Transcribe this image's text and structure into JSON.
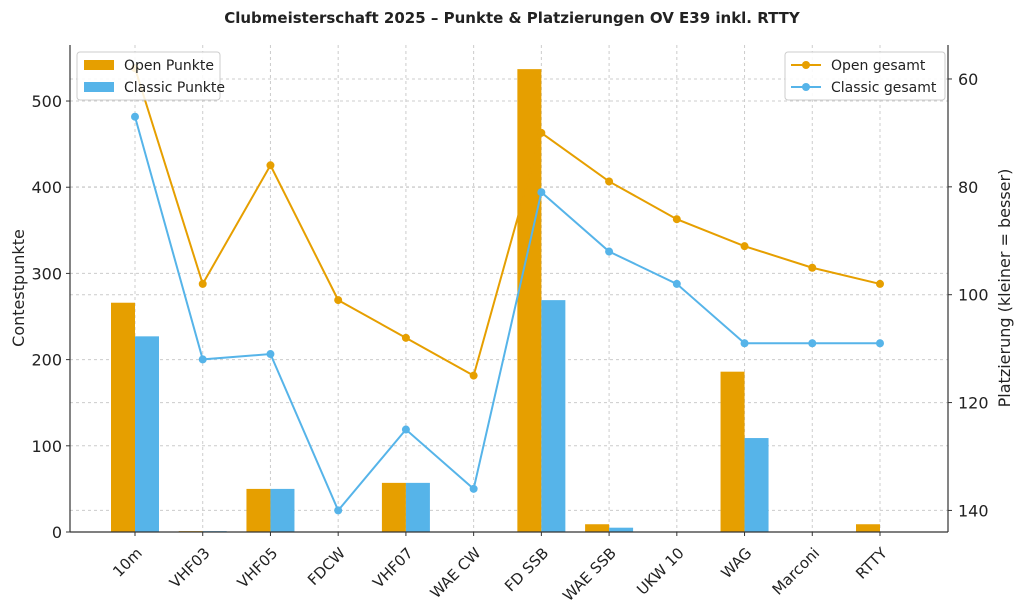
{
  "chart_data": {
    "type": "bar+line",
    "title": "Clubmeisterschaft 2025 – Punkte & Platzierungen OV E39 inkl. RTTY",
    "xlabel": "",
    "ylabel": "Contestpunkte",
    "ylabel_right": "Platzierung (kleiner = besser)",
    "ylim": [
      0,
      565
    ],
    "ylim_right": [
      144,
      53.7
    ],
    "yticks": [
      0,
      100,
      200,
      300,
      400,
      500
    ],
    "yticks_right": [
      60,
      80,
      100,
      120,
      140
    ],
    "grid": true,
    "categories": [
      "10m",
      "VHF03",
      "VHF05",
      "FDCW",
      "VHF07",
      "WAE CW",
      "FD SSB",
      "WAE SSB",
      "UKW 10",
      "WAG",
      "Marconi",
      "RTTY"
    ],
    "bar_series": [
      {
        "name": "Open Punkte",
        "color": "#E69F00",
        "values": [
          266,
          1,
          50,
          0,
          57,
          0,
          537,
          9,
          0,
          186,
          0,
          9
        ]
      },
      {
        "name": "Classic Punkte",
        "color": "#56B4E9",
        "values": [
          227,
          1,
          50,
          0,
          57,
          0,
          269,
          5,
          0,
          109,
          0,
          0
        ]
      }
    ],
    "line_series": [
      {
        "name": "Open gesamt",
        "color": "#E69F00",
        "values": [
          58,
          98,
          76,
          101,
          108,
          115,
          70,
          79,
          86,
          91,
          95,
          98
        ]
      },
      {
        "name": "Classic gesamt",
        "color": "#56B4E9",
        "values": [
          67,
          112,
          111,
          140,
          125,
          136,
          81,
          92,
          98,
          109,
          109,
          109
        ]
      }
    ],
    "legend_left": "top-left",
    "legend_right": "top-right"
  }
}
